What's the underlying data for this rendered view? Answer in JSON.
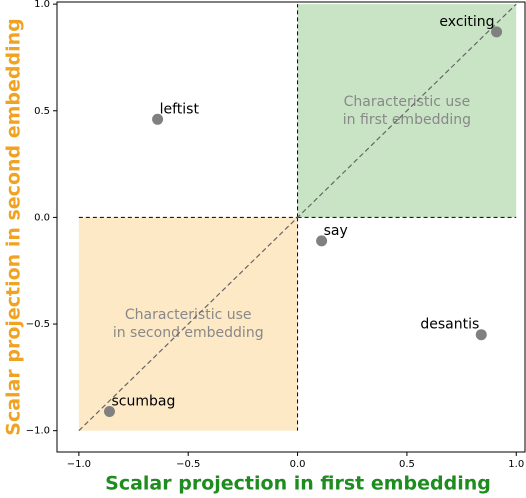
{
  "chart_data": {
    "type": "scatter",
    "x_label": "Scalar projection in first embedding",
    "y_label": "Scalar projection in second embedding",
    "x_label_color": "#1e8c1e",
    "y_label_color": "#f0a322",
    "points": [
      {
        "label": "exciting",
        "x": 0.91,
        "y": 0.87
      },
      {
        "label": "leftist",
        "x": -0.64,
        "y": 0.46
      },
      {
        "label": "say",
        "x": 0.11,
        "y": -0.11
      },
      {
        "label": "desantis",
        "x": 0.84,
        "y": -0.55
      },
      {
        "label": "scumbag",
        "x": -0.86,
        "y": -0.91
      }
    ],
    "point_color": "#808080",
    "regions": [
      {
        "label": [
          "Characteristic use",
          "in first embedding"
        ],
        "x": [
          0,
          1
        ],
        "y": [
          0,
          1
        ],
        "color": "#c9e4c5"
      },
      {
        "label": [
          "Characteristic use",
          "in second embedding"
        ],
        "x": [
          -1,
          0
        ],
        "y": [
          -1,
          0
        ],
        "color": "#fde9c6"
      }
    ],
    "xlim": [
      -1.1,
      1.04
    ],
    "ylim": [
      -1.1,
      1.01
    ],
    "xticks": [
      {
        "value": -1.0,
        "label": "−1.0"
      },
      {
        "value": -0.5,
        "label": "−0.5"
      },
      {
        "value": 0.0,
        "label": "0.0"
      },
      {
        "value": 0.5,
        "label": "0.5"
      },
      {
        "value": 1.0,
        "label": "1.0"
      }
    ],
    "yticks": [
      {
        "value": -1.0,
        "label": "−1.0"
      },
      {
        "value": -0.5,
        "label": "−0.5"
      },
      {
        "value": 0.0,
        "label": "0.0"
      },
      {
        "value": 0.5,
        "label": "0.5"
      },
      {
        "value": 1.0,
        "label": "1.0"
      }
    ]
  }
}
